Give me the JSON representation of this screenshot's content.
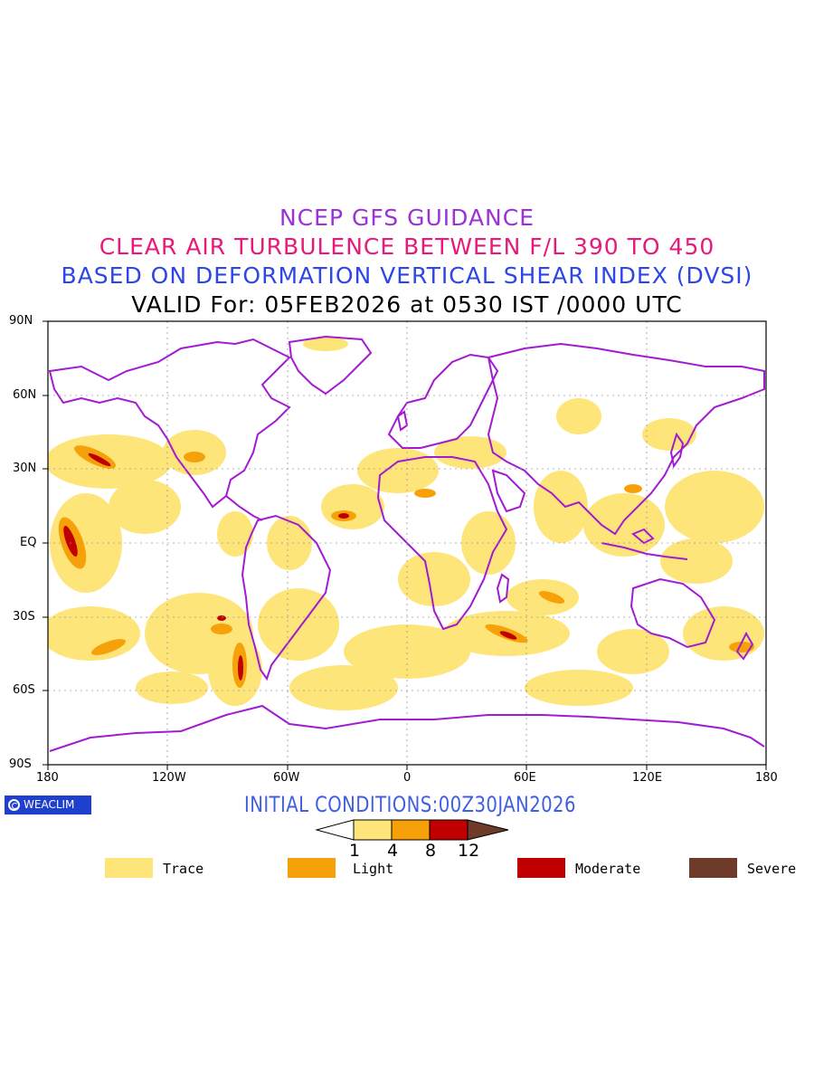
{
  "titles": {
    "line1": "NCEP GFS GUIDANCE",
    "line2": "CLEAR AIR TURBULENCE BETWEEN F/L 390 TO 450",
    "line3": "BASED ON DEFORMATION VERTICAL SHEAR INDEX (DVSI)",
    "line4": "VALID For: 05FEB2026 at 0530 IST /0000 UTC"
  },
  "colors": {
    "line1": "#9b32d6",
    "line2": "#e8197a",
    "line3": "#2d46e6",
    "line4": "#000000",
    "coast": "#a21bd0",
    "trace": "#fde57a",
    "light": "#f7a10a",
    "moderate": "#c00000",
    "severe": "#6e3a2a",
    "initial": "#3f5fe0"
  },
  "axes": {
    "lat_ticks": [
      "90N",
      "60N",
      "30N",
      "EQ",
      "30S",
      "60S",
      "90S"
    ],
    "lon_ticks": [
      "180",
      "120W",
      "60W",
      "0",
      "60E",
      "120E",
      "180"
    ]
  },
  "badge": "WEACLIM",
  "initial_conditions": "INITIAL CONDITIONS:00Z30JAN2026",
  "colorbar": {
    "thresholds": [
      "1",
      "4",
      "8",
      "12"
    ]
  },
  "legend": [
    {
      "label": "Trace",
      "color": "#fde57a"
    },
    {
      "label": "Light",
      "color": "#f7a10a"
    },
    {
      "label": "Moderate",
      "color": "#c00000"
    },
    {
      "label": "Severe",
      "color": "#6e3a2a"
    }
  ]
}
